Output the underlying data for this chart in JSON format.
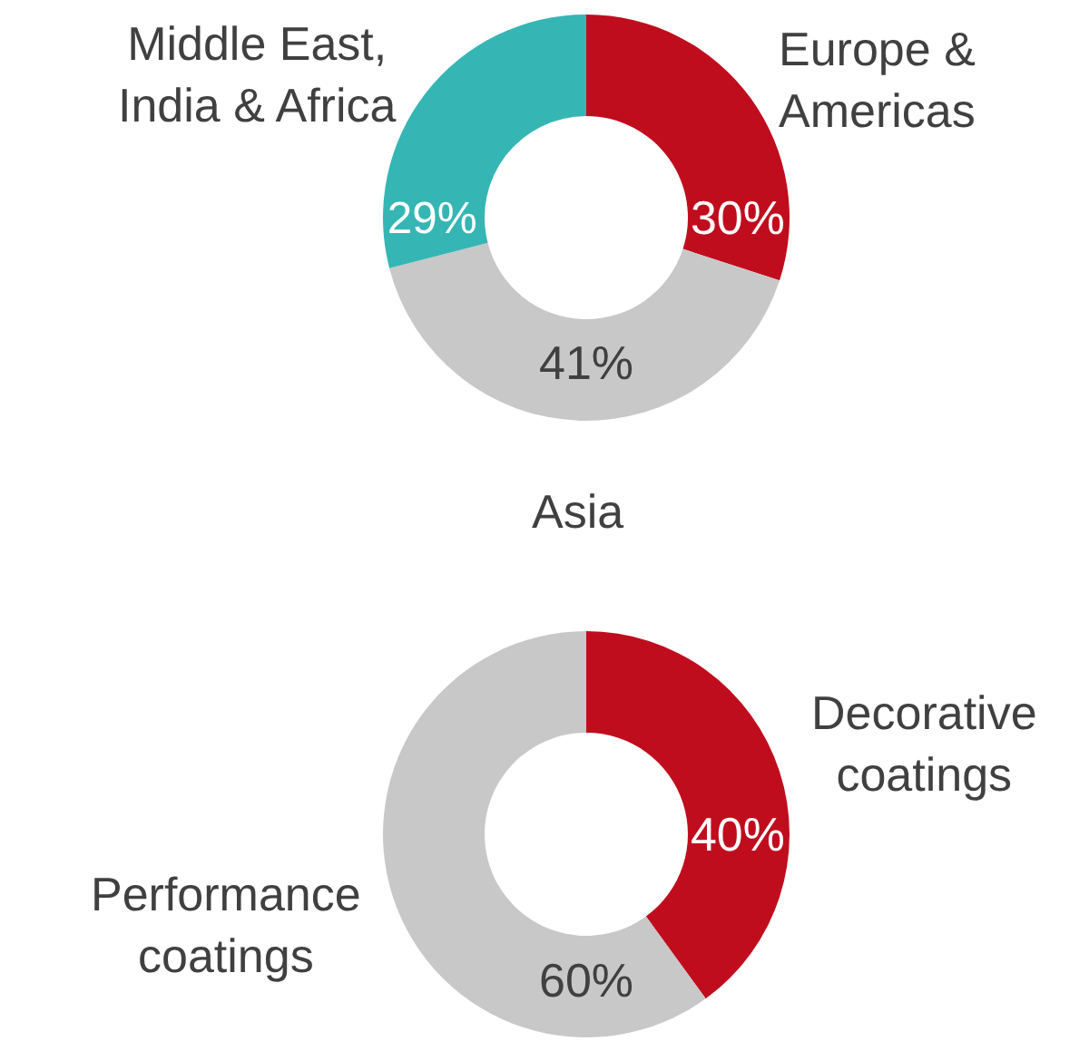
{
  "chart_data": [
    {
      "type": "donut",
      "categories": [
        "Europe & Americas",
        "Asia",
        "Middle East, India & Africa"
      ],
      "values": [
        30,
        41,
        29
      ],
      "value_labels": [
        "30%",
        "41%",
        "29%"
      ],
      "colors": [
        "#c00d1e",
        "#c8c8c8",
        "#35b6b4"
      ],
      "legend": false
    },
    {
      "type": "donut",
      "categories": [
        "Decorative coatings",
        "Performance coatings"
      ],
      "values": [
        40,
        60
      ],
      "value_labels": [
        "40%",
        "60%"
      ],
      "colors": [
        "#c00d1e",
        "#c8c8c8"
      ],
      "legend": false
    }
  ]
}
